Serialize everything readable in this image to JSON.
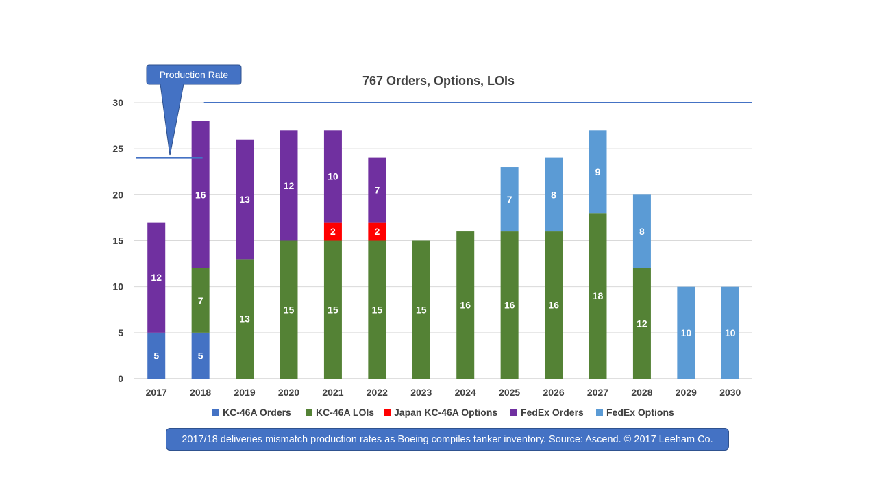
{
  "callout": {
    "label": "Production Rate"
  },
  "footer": {
    "text": "2017/18 deliveries mismatch production rates as Boeing compiles tanker inventory. Source: Ascend. © 2017 Leeham Co."
  },
  "chart_data": {
    "type": "bar",
    "stacked": true,
    "title": "767 Orders, Options, LOIs",
    "xlabel": "",
    "ylabel": "",
    "ylim": [
      0,
      30
    ],
    "yticks": [
      0,
      5,
      10,
      15,
      20,
      25,
      30
    ],
    "grid": true,
    "legend": "bottom",
    "categories": [
      "2017",
      "2018",
      "2019",
      "2020",
      "2021",
      "2022",
      "2023",
      "2024",
      "2025",
      "2026",
      "2027",
      "2028",
      "2029",
      "2030"
    ],
    "series": [
      {
        "name": "KC-46A Orders",
        "color": "#4472c4",
        "values": [
          5,
          5,
          0,
          0,
          0,
          0,
          0,
          0,
          0,
          0,
          0,
          0,
          0,
          0
        ]
      },
      {
        "name": "KC-46A LOIs",
        "color": "#548235",
        "values": [
          0,
          7,
          13,
          15,
          15,
          15,
          15,
          16,
          16,
          16,
          18,
          12,
          0,
          0
        ]
      },
      {
        "name": "Japan KC-46A Options",
        "color": "#ff0000",
        "values": [
          0,
          0,
          0,
          0,
          2,
          2,
          0,
          0,
          0,
          0,
          0,
          0,
          0,
          0
        ]
      },
      {
        "name": "FedEx Orders",
        "color": "#7030a0",
        "values": [
          12,
          16,
          13,
          12,
          10,
          7,
          0,
          0,
          0,
          0,
          0,
          0,
          0,
          0
        ]
      },
      {
        "name": "FedEx Options",
        "color": "#5b9bd5",
        "values": [
          0,
          0,
          0,
          0,
          0,
          0,
          0,
          0,
          7,
          8,
          9,
          8,
          10,
          10
        ]
      }
    ],
    "production_rate_lines": [
      {
        "from": "2017",
        "to": "2018",
        "value": 24
      },
      {
        "from": "2018",
        "to": "2030",
        "value": 30
      }
    ]
  }
}
